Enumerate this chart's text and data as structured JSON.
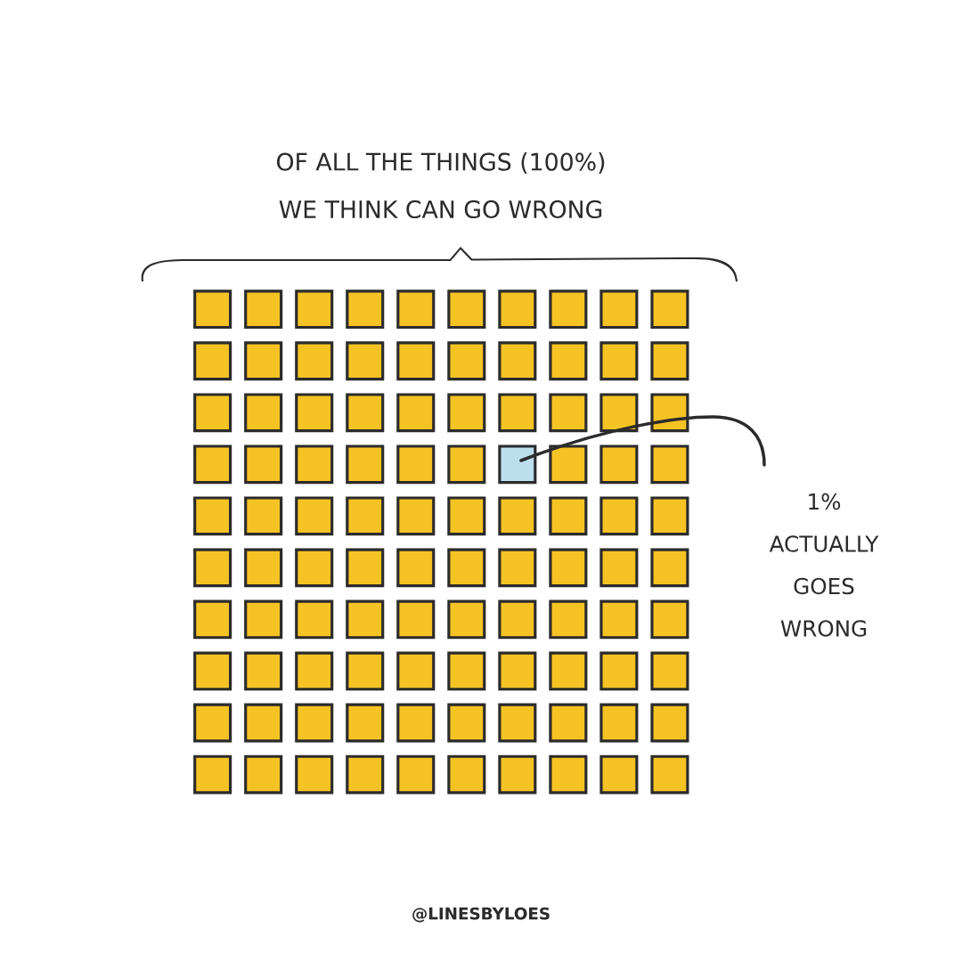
{
  "chart_data": {
    "type": "other",
    "title": "OF ALL THE THINGS",
    "subtitle": "WE THINK CAN GO WRONG",
    "values": [
      100,
      1
    ],
    "value_labels": [
      "(100%)",
      "1%"
    ],
    "colors": [
      "#f6c324",
      "#bcdfee"
    ],
    "annotations": [
      "ACTUALLY GOES WRONG",
      "@LINESBYLOES"
    ]
  }
}
